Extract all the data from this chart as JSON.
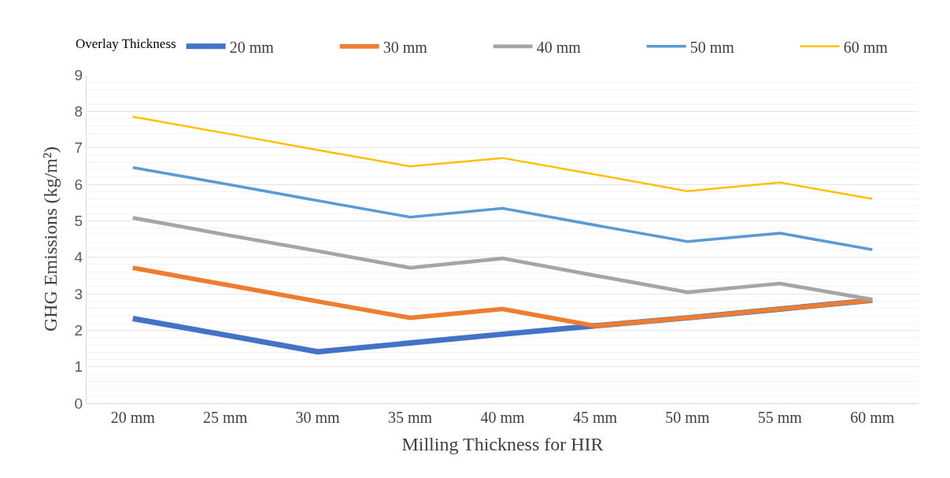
{
  "chart_data": {
    "type": "line",
    "xlabel": "Milling Thickness for HIR",
    "ylabel": "GHG Emissions (kg/m²)",
    "legend_title": "Overlay Thickness",
    "categories": [
      "20 mm",
      "25 mm",
      "30 mm",
      "35 mm",
      "40 mm",
      "45 mm",
      "50 mm",
      "55 mm",
      "60 mm"
    ],
    "series": [
      {
        "name": "20 mm",
        "color": "#4472c4",
        "values": [
          2.32,
          1.87,
          1.41,
          1.65,
          1.89,
          2.12,
          2.34,
          2.58,
          2.82
        ]
      },
      {
        "name": "30 mm",
        "color": "#ed7d31",
        "values": [
          3.71,
          3.25,
          2.79,
          2.34,
          2.58,
          2.12,
          2.34,
          2.58,
          2.82
        ]
      },
      {
        "name": "40 mm",
        "color": "#a5a5a5",
        "values": [
          5.08,
          4.62,
          4.17,
          3.71,
          3.97,
          3.5,
          3.04,
          3.28,
          2.84
        ]
      },
      {
        "name": "50 mm",
        "color": "#5b9bd5",
        "values": [
          6.46,
          6.01,
          5.55,
          5.1,
          5.34,
          4.88,
          4.43,
          4.66,
          4.21
        ]
      },
      {
        "name": "60 mm",
        "color": "#ffc000",
        "values": [
          7.85,
          7.4,
          6.94,
          6.49,
          6.72,
          6.27,
          5.81,
          6.05,
          5.6
        ]
      }
    ],
    "ylim": [
      0,
      9
    ],
    "yticks": [
      0,
      1,
      2,
      3,
      4,
      5,
      6,
      7,
      8,
      9
    ],
    "grid": "y",
    "legend": "top",
    "marker": "none",
    "line_style": "solid"
  }
}
